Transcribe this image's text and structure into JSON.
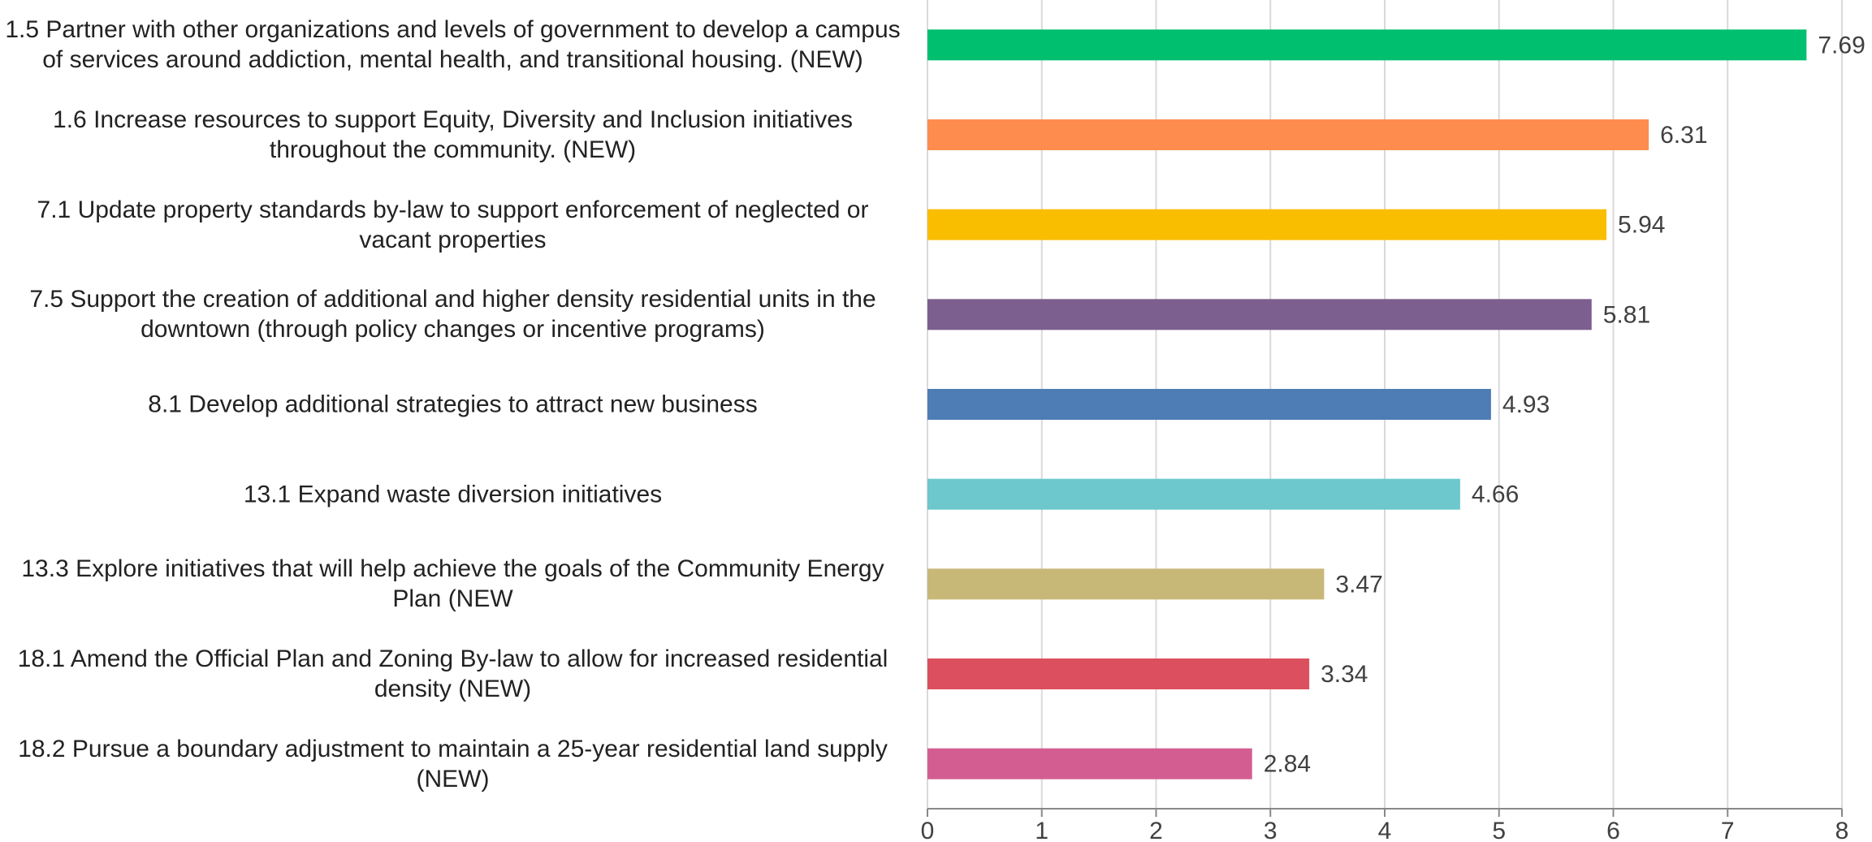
{
  "chart_data": {
    "type": "barh",
    "categories": [
      "1.5 Partner with other organizations and levels of government to develop a campus of services around addiction, mental health, and transitional housing. (NEW)",
      "1.6 Increase resources to support Equity, Diversity and Inclusion initiatives throughout the community. (NEW)",
      "7.1 Update property standards by-law to support enforcement of neglected or vacant properties",
      "7.5 Support the creation of additional and higher density residential units in the downtown (through policy changes or incentive programs)",
      "8.1 Develop additional strategies to attract new business",
      "13.1 Expand waste diversion initiatives",
      "13.3 Explore initiatives that will help achieve the goals of the Community Energy Plan (NEW",
      "18.1 Amend the Official Plan and Zoning By-law to allow for increased residential density (NEW)",
      "18.2 Pursue a boundary adjustment to maintain a 25-year residential land supply (NEW)"
    ],
    "values": [
      7.69,
      6.31,
      5.94,
      5.81,
      4.93,
      4.66,
      3.47,
      3.34,
      2.84
    ],
    "colors": [
      "#00c070",
      "#ff8c4f",
      "#f9be00",
      "#7c5e8f",
      "#4e7db5",
      "#6cc8cc",
      "#c8b878",
      "#dc4f5e",
      "#d35d91"
    ],
    "xlim": [
      0,
      8
    ],
    "xticks": [
      0,
      1,
      2,
      3,
      4,
      5,
      6,
      7,
      8
    ],
    "grid": true
  }
}
